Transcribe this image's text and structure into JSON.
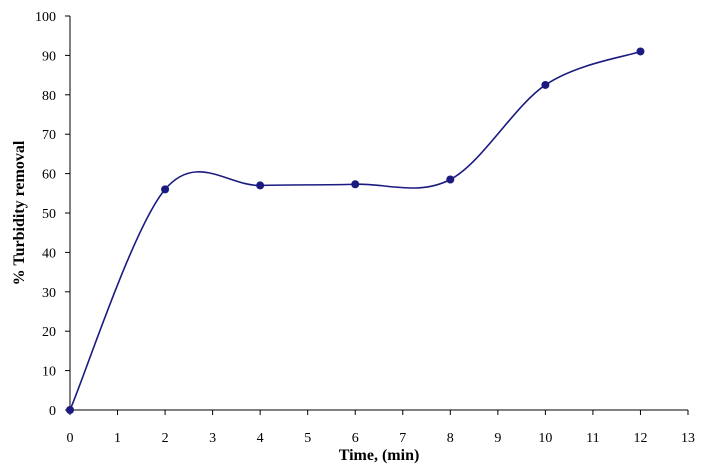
{
  "chart_data": {
    "type": "line",
    "title": "",
    "xlabel": "Time, (min)",
    "ylabel": "% Turbidity removal",
    "xlim": [
      0,
      13
    ],
    "ylim": [
      0,
      100
    ],
    "x_ticks": [
      0,
      1,
      2,
      3,
      4,
      5,
      6,
      7,
      8,
      9,
      10,
      11,
      12,
      13
    ],
    "y_ticks": [
      0,
      10,
      20,
      30,
      40,
      50,
      60,
      70,
      80,
      90,
      100
    ],
    "grid": false,
    "legend": "none",
    "series": [
      {
        "x": [
          0,
          2,
          4,
          6,
          8,
          10,
          12
        ],
        "y": [
          0,
          56,
          57,
          57.3,
          58.5,
          82.5,
          91
        ],
        "line": "smoothed",
        "marker": "circle"
      }
    ],
    "colors": {
      "series": "#1a1a80",
      "axis": "#000000"
    }
  }
}
